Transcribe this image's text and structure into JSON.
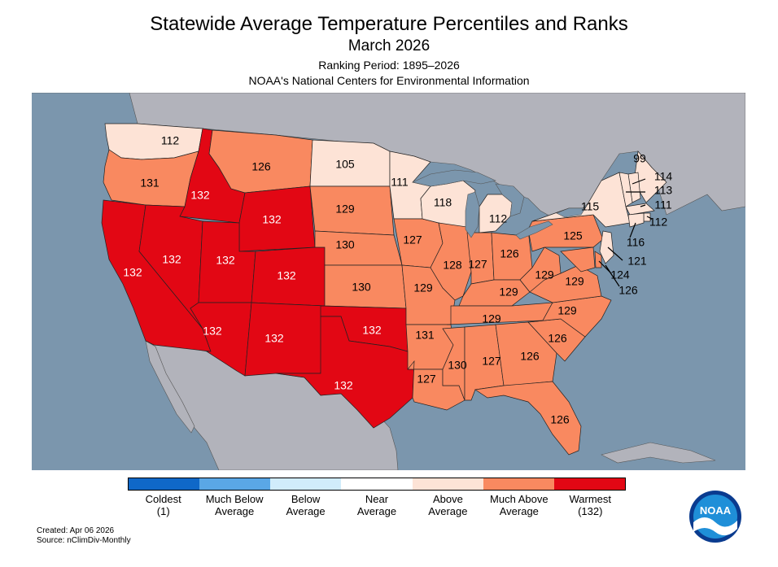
{
  "header": {
    "title": "Statewide Average Temperature Percentiles and Ranks",
    "subtitle": "March 2026",
    "period": "Ranking Period: 1895–2026",
    "agency": "NOAA's National Centers for Environmental Information"
  },
  "colors": {
    "ocean": "#7b96ad",
    "land_other": "#b2b3bb",
    "lakes": "#7b96ad",
    "near_average": "#ffffff",
    "above_average": "#fde3d6",
    "much_above": "#f98960",
    "warmest": "#e20714",
    "coldest": "#0f68c8",
    "much_below": "#5aa7e6",
    "below_average": "#d1ecfb"
  },
  "legend": [
    {
      "label": "Coldest",
      "sub": "(1)",
      "color": "#0f68c8"
    },
    {
      "label": "Much Below",
      "sub": "Average",
      "color": "#5aa7e6"
    },
    {
      "label": "Below",
      "sub": "Average",
      "color": "#d1ecfb"
    },
    {
      "label": "Near",
      "sub": "Average",
      "color": "#ffffff"
    },
    {
      "label": "Above",
      "sub": "Average",
      "color": "#fde3d6"
    },
    {
      "label": "Much Above",
      "sub": "Average",
      "color": "#f98960"
    },
    {
      "label": "Warmest",
      "sub": "(132)",
      "color": "#e20714"
    }
  ],
  "footer": {
    "created": "Created: Apr 06 2026",
    "source": "Source: nClimDiv-Monthly"
  },
  "logo_text": "NOAA",
  "states": [
    {
      "name": "WA",
      "rank": "112",
      "category": "above"
    },
    {
      "name": "OR",
      "rank": "131",
      "category": "much_above"
    },
    {
      "name": "CA",
      "rank": "132",
      "category": "warmest"
    },
    {
      "name": "ID",
      "rank": "132",
      "category": "warmest"
    },
    {
      "name": "NV",
      "rank": "132",
      "category": "warmest"
    },
    {
      "name": "MT",
      "rank": "126",
      "category": "much_above"
    },
    {
      "name": "WY",
      "rank": "132",
      "category": "warmest"
    },
    {
      "name": "UT",
      "rank": "132",
      "category": "warmest"
    },
    {
      "name": "AZ",
      "rank": "132",
      "category": "warmest"
    },
    {
      "name": "CO",
      "rank": "132",
      "category": "warmest"
    },
    {
      "name": "NM",
      "rank": "132",
      "category": "warmest"
    },
    {
      "name": "ND",
      "rank": "105",
      "category": "above"
    },
    {
      "name": "SD",
      "rank": "129",
      "category": "much_above"
    },
    {
      "name": "NE",
      "rank": "130",
      "category": "much_above"
    },
    {
      "name": "KS",
      "rank": "130",
      "category": "much_above"
    },
    {
      "name": "OK",
      "rank": "132",
      "category": "warmest"
    },
    {
      "name": "TX",
      "rank": "132",
      "category": "warmest"
    },
    {
      "name": "MN",
      "rank": "111",
      "category": "above"
    },
    {
      "name": "IA",
      "rank": "127",
      "category": "much_above"
    },
    {
      "name": "MO",
      "rank": "129",
      "category": "much_above"
    },
    {
      "name": "AR",
      "rank": "131",
      "category": "much_above"
    },
    {
      "name": "LA",
      "rank": "127",
      "category": "much_above"
    },
    {
      "name": "WI",
      "rank": "118",
      "category": "above"
    },
    {
      "name": "IL",
      "rank": "128",
      "category": "much_above"
    },
    {
      "name": "MI",
      "rank": "112",
      "category": "above"
    },
    {
      "name": "IN",
      "rank": "127",
      "category": "much_above"
    },
    {
      "name": "OH",
      "rank": "126",
      "category": "much_above"
    },
    {
      "name": "KY",
      "rank": "129",
      "category": "much_above"
    },
    {
      "name": "TN",
      "rank": "129",
      "category": "much_above"
    },
    {
      "name": "MS",
      "rank": "130",
      "category": "much_above"
    },
    {
      "name": "AL",
      "rank": "127",
      "category": "much_above"
    },
    {
      "name": "GA",
      "rank": "126",
      "category": "much_above"
    },
    {
      "name": "FL",
      "rank": "126",
      "category": "much_above"
    },
    {
      "name": "SC",
      "rank": "126",
      "category": "much_above"
    },
    {
      "name": "NC",
      "rank": "129",
      "category": "much_above"
    },
    {
      "name": "VA",
      "rank": "129",
      "category": "much_above"
    },
    {
      "name": "WV",
      "rank": "129",
      "category": "much_above"
    },
    {
      "name": "PA",
      "rank": "125",
      "category": "much_above"
    },
    {
      "name": "NY",
      "rank": "115",
      "category": "above"
    },
    {
      "name": "ME",
      "rank": "99",
      "category": "above"
    },
    {
      "name": "NH",
      "rank": "114",
      "category": "above"
    },
    {
      "name": "VT",
      "rank": "113",
      "category": "above"
    },
    {
      "name": "MA",
      "rank": "111",
      "category": "above"
    },
    {
      "name": "RI",
      "rank": "112",
      "category": "above"
    },
    {
      "name": "CT",
      "rank": "116",
      "category": "above"
    },
    {
      "name": "NJ",
      "rank": "121",
      "category": "above"
    },
    {
      "name": "DE",
      "rank": "124",
      "category": "much_above"
    },
    {
      "name": "MD",
      "rank": "126",
      "category": "much_above"
    }
  ]
}
